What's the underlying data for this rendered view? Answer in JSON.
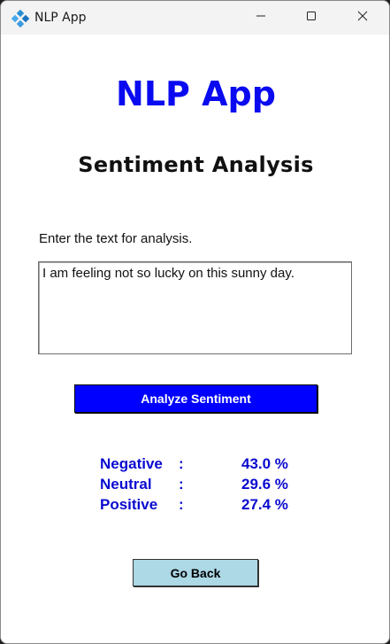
{
  "window": {
    "title": "NLP App",
    "icon": "blue-diamond-app-icon",
    "controls": [
      "minimize-icon",
      "maximize-icon",
      "close-icon"
    ]
  },
  "header": {
    "app_title": "NLP App",
    "section_title": "Sentiment Analysis"
  },
  "form": {
    "prompt": "Enter the text for analysis.",
    "input_value": "I am feeling not so lucky on this sunny day.",
    "analyze_label": "Analyze Sentiment"
  },
  "results": [
    {
      "label": "Negative",
      "sep": ":",
      "value": "43.0 %"
    },
    {
      "label": "Neutral",
      "sep": ":",
      "value": "29.6 %"
    },
    {
      "label": "Positive",
      "sep": ":",
      "value": "27.4 %"
    }
  ],
  "footer": {
    "back_label": "Go Back"
  },
  "colors": {
    "title_blue": "#0a0af0",
    "analyze_button_bg": "#0000ff",
    "back_button_bg": "#add8e6",
    "result_text": "#0a0ad0"
  }
}
